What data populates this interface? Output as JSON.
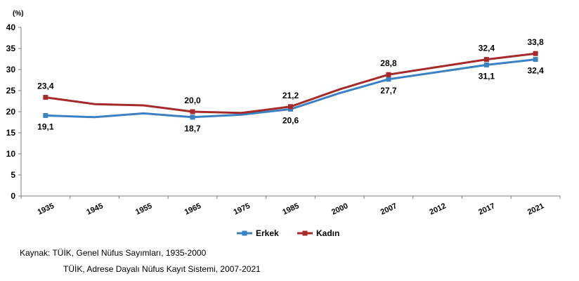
{
  "chart_data": {
    "type": "line",
    "unit_label": "(%)",
    "categories": [
      "1935",
      "1945",
      "1955",
      "1965",
      "1975",
      "1985",
      "2000",
      "2007",
      "2012",
      "2017",
      "2021"
    ],
    "ylim": [
      0,
      40
    ],
    "yticks": [
      0,
      5,
      10,
      15,
      20,
      25,
      30,
      35,
      40
    ],
    "grid": false,
    "legend_position": "bottom",
    "series": [
      {
        "name": "Erkek",
        "color": "#3B82C4",
        "values": [
          19.1,
          18.7,
          19.6,
          18.7,
          19.3,
          20.6,
          24.4,
          27.7,
          29.4,
          31.1,
          32.4
        ],
        "labels": [
          "19,1",
          null,
          null,
          "18,7",
          null,
          "20,6",
          null,
          "27,7",
          null,
          "31,1",
          "32,4"
        ],
        "label_position": "below"
      },
      {
        "name": "Kadın",
        "color": "#A62A2A",
        "values": [
          23.4,
          21.8,
          21.5,
          20.0,
          19.7,
          21.2,
          25.3,
          28.8,
          30.6,
          32.4,
          33.8
        ],
        "labels": [
          "23,4",
          null,
          null,
          "20,0",
          null,
          "21,2",
          null,
          "28,8",
          null,
          "32,4",
          "33,8"
        ],
        "label_position": "above"
      }
    ]
  },
  "source": {
    "line1": "Kaynak: TÜİK, Genel Nüfus Sayımları, 1935-2000",
    "line2": "TÜİK, Adrese Dayalı Nüfus Kayıt Sistemi, 2007-2021"
  }
}
